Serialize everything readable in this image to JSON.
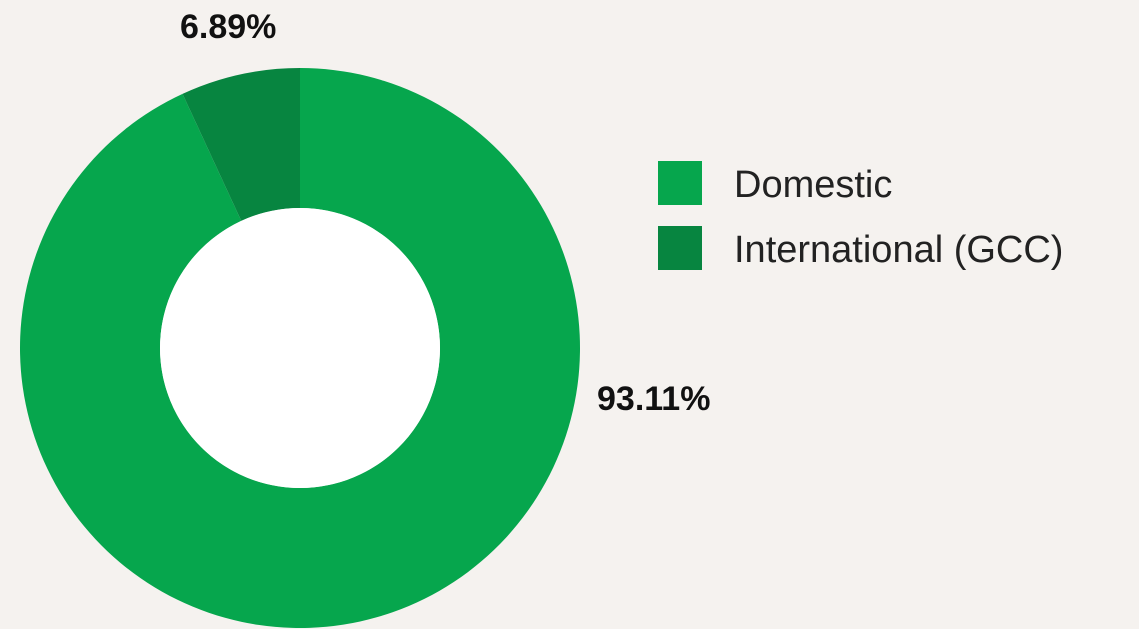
{
  "chart_data": {
    "type": "pie",
    "donut": true,
    "categories": [
      "Domestic",
      "International (GCC)"
    ],
    "values": [
      93.11,
      6.89
    ],
    "unit": "%",
    "data_labels": [
      "93.11%",
      "6.89%"
    ],
    "colors": [
      "#06a64d",
      "#078540"
    ],
    "legend": {
      "position": "right",
      "entries": [
        "Domestic",
        "International (GCC)"
      ]
    }
  },
  "colors": {
    "background": "#f5f2ef",
    "hole": "#ffffff",
    "label_text": "#111111",
    "legend_text": "#222222"
  }
}
